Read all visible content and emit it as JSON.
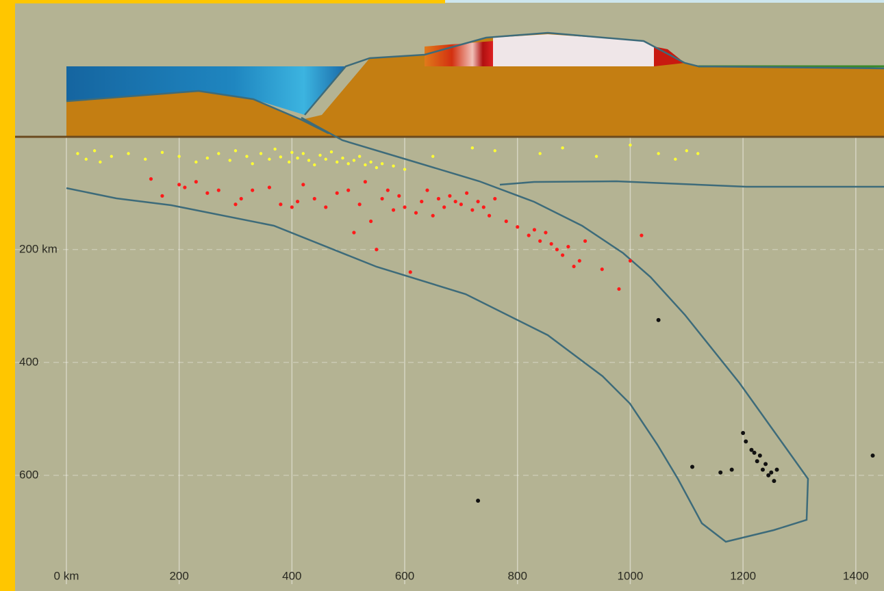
{
  "chart_data": {
    "type": "scatter",
    "xlim": [
      -91,
      1450
    ],
    "ylim": [
      805,
      -236
    ],
    "xticks": [
      {
        "value": 0,
        "label": "0 km"
      },
      200,
      400,
      600,
      800,
      1000,
      1200,
      1400
    ],
    "yticks": [
      {
        "value": 200,
        "label": "200 km"
      },
      400,
      600
    ],
    "grid": true,
    "series": [
      {
        "color": "#ffff33",
        "x": [
          20,
          35,
          50,
          60,
          80,
          110,
          140,
          170,
          200,
          230,
          250,
          270,
          290,
          300,
          320,
          330,
          345,
          360,
          370,
          380,
          395,
          400,
          410,
          420,
          430,
          440,
          450,
          460,
          470,
          480,
          490,
          500,
          510,
          520,
          530,
          540,
          550,
          560,
          580,
          600,
          650,
          720,
          760,
          840,
          880,
          940,
          1000,
          1050,
          1080,
          1100,
          1120
        ],
        "values": [
          30,
          40,
          25,
          45,
          35,
          30,
          40,
          28,
          35,
          45,
          38,
          30,
          42,
          25,
          35,
          48,
          30,
          40,
          22,
          36,
          45,
          28,
          38,
          30,
          42,
          50,
          33,
          40,
          27,
          45,
          38,
          48,
          42,
          35,
          50,
          45,
          55,
          48,
          52,
          58,
          35,
          20,
          25,
          30,
          20,
          35,
          15,
          30,
          40,
          25,
          30
        ]
      },
      {
        "color": "#ff1a1a",
        "x": [
          150,
          170,
          200,
          210,
          230,
          250,
          270,
          300,
          310,
          330,
          360,
          380,
          400,
          410,
          420,
          440,
          460,
          480,
          500,
          510,
          520,
          530,
          540,
          550,
          560,
          570,
          580,
          590,
          600,
          610,
          620,
          630,
          640,
          650,
          660,
          670,
          680,
          690,
          700,
          710,
          720,
          730,
          740,
          750,
          760,
          780,
          800,
          820,
          830,
          840,
          850,
          860,
          870,
          880,
          890,
          900,
          910,
          920,
          950,
          980,
          1000,
          1020
        ],
        "values": [
          75,
          105,
          85,
          90,
          80,
          100,
          95,
          120,
          110,
          95,
          90,
          120,
          125,
          115,
          85,
          110,
          125,
          100,
          95,
          170,
          120,
          80,
          150,
          200,
          110,
          95,
          130,
          105,
          125,
          240,
          135,
          115,
          95,
          140,
          110,
          125,
          105,
          115,
          120,
          100,
          130,
          115,
          125,
          140,
          110,
          150,
          160,
          175,
          165,
          185,
          170,
          190,
          200,
          210,
          195,
          230,
          220,
          185,
          235,
          270,
          220,
          175
        ]
      },
      {
        "color": "#111111",
        "x": [
          1050,
          1110,
          1160,
          1180,
          1200,
          1205,
          1215,
          1220,
          1225,
          1230,
          1235,
          1240,
          1245,
          1250,
          1255,
          1260,
          730,
          1430
        ],
        "values": [
          325,
          585,
          595,
          590,
          525,
          540,
          555,
          560,
          575,
          565,
          590,
          580,
          600,
          595,
          610,
          590,
          645,
          565
        ]
      }
    ]
  }
}
